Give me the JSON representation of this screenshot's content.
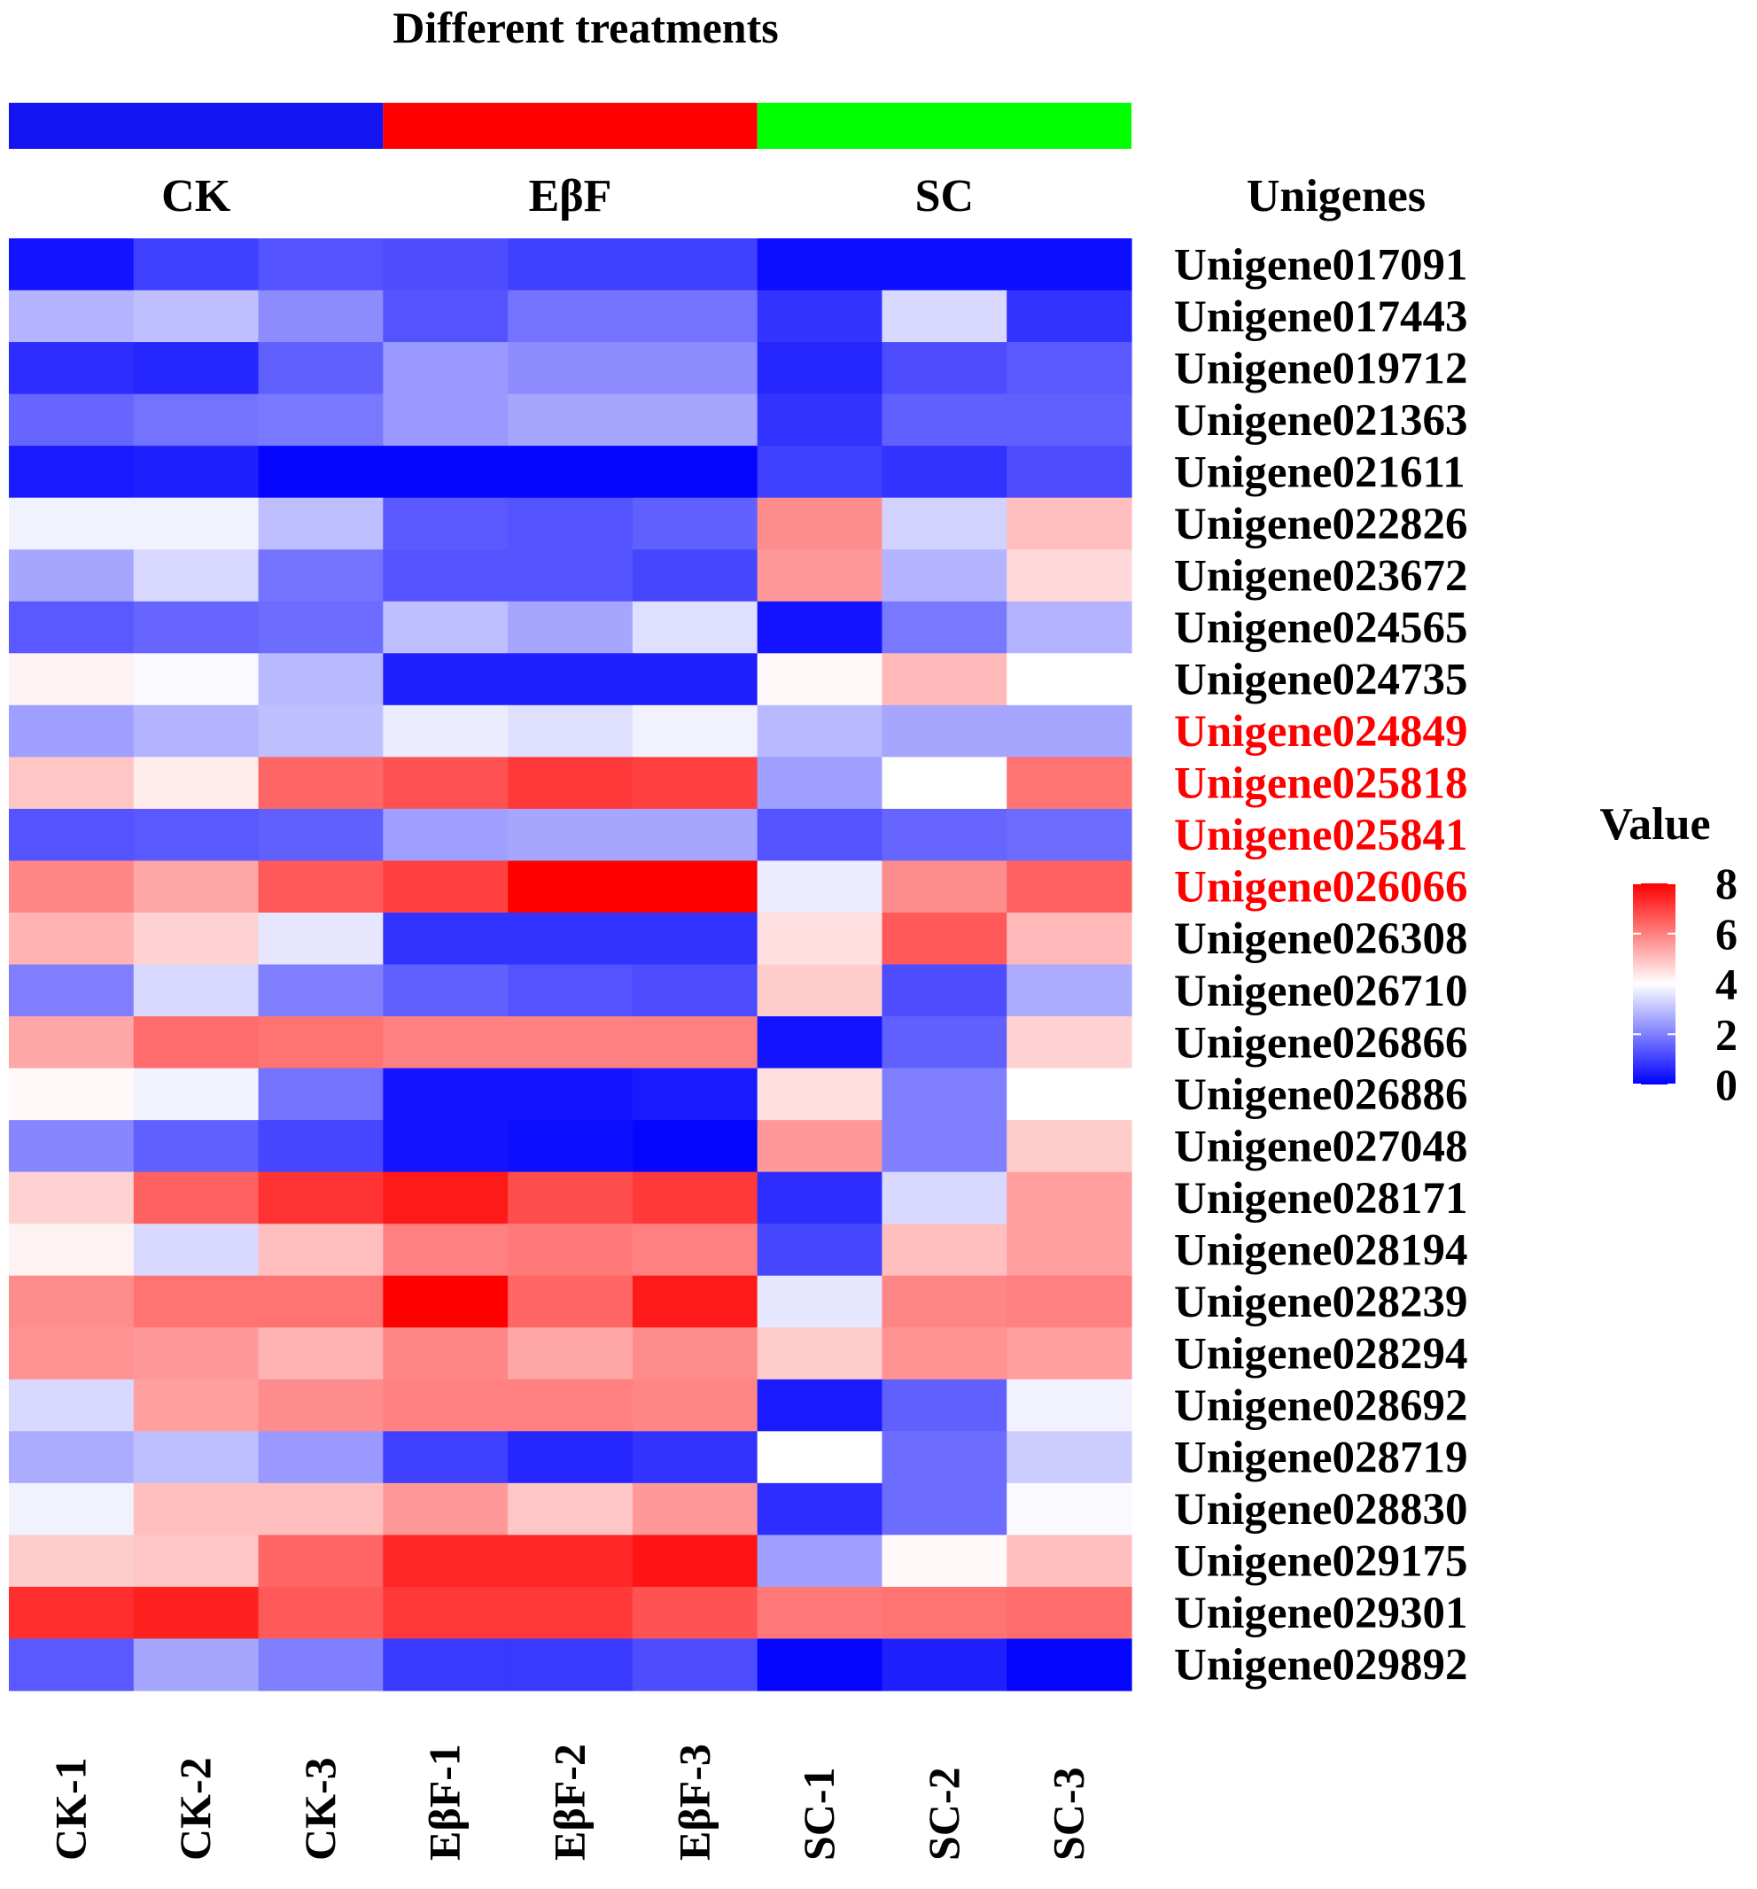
{
  "chart_data": {
    "type": "heatmap",
    "title": "Different treatments",
    "row_axis_title": "Unigenes",
    "legend_title": "Value",
    "value_range": [
      0,
      8
    ],
    "legend_ticks": [
      "8",
      "6",
      "4",
      "2",
      "0"
    ],
    "legend_tick_values": [
      8,
      6,
      4,
      2,
      0
    ],
    "groups": [
      {
        "name": "CK",
        "color": "#1414f0",
        "span": 3
      },
      {
        "name": "EβF",
        "color": "#ff0000",
        "span": 3
      },
      {
        "name": "SC",
        "color": "#00ff00",
        "span": 3
      }
    ],
    "columns": [
      "CK-1",
      "CK-2",
      "CK-3",
      "EβF-1",
      "EβF-2",
      "EβF-3",
      "SC-1",
      "SC-2",
      "SC-3"
    ],
    "rows": [
      {
        "label": "Unigene017091",
        "highlight": false,
        "values": [
          0.3,
          1.0,
          1.3,
          1.2,
          1.0,
          1.0,
          0.2,
          0.2,
          0.2
        ]
      },
      {
        "label": "Unigene017443",
        "highlight": false,
        "values": [
          2.8,
          3.0,
          2.2,
          1.3,
          1.8,
          1.8,
          0.8,
          3.4,
          0.8
        ]
      },
      {
        "label": "Unigene019712",
        "highlight": false,
        "values": [
          0.7,
          0.6,
          1.5,
          2.4,
          2.2,
          2.2,
          0.6,
          1.2,
          1.4
        ]
      },
      {
        "label": "Unigene021363",
        "highlight": false,
        "values": [
          1.6,
          1.8,
          1.9,
          2.4,
          2.6,
          2.6,
          0.8,
          1.5,
          1.5
        ]
      },
      {
        "label": "Unigene021611",
        "highlight": false,
        "values": [
          0.4,
          0.5,
          0.1,
          0.1,
          0.1,
          0.1,
          1.0,
          0.8,
          1.2
        ]
      },
      {
        "label": "Unigene022826",
        "highlight": false,
        "values": [
          3.8,
          3.8,
          3.0,
          1.4,
          1.3,
          1.5,
          5.8,
          3.3,
          5.0
        ]
      },
      {
        "label": "Unigene023672",
        "highlight": false,
        "values": [
          2.6,
          3.4,
          1.8,
          1.3,
          1.3,
          1.1,
          5.6,
          2.8,
          4.6
        ]
      },
      {
        "label": "Unigene024565",
        "highlight": false,
        "values": [
          1.4,
          1.6,
          1.7,
          3.0,
          2.6,
          3.5,
          0.3,
          1.9,
          2.8
        ]
      },
      {
        "label": "Unigene024735",
        "highlight": false,
        "values": [
          4.2,
          3.9,
          2.9,
          0.5,
          0.5,
          0.5,
          4.1,
          5.1,
          4.0
        ]
      },
      {
        "label": "Unigene024849",
        "highlight": true,
        "values": [
          2.5,
          2.8,
          3.0,
          3.7,
          3.5,
          3.8,
          2.9,
          2.6,
          2.6
        ]
      },
      {
        "label": "Unigene025818",
        "highlight": true,
        "values": [
          4.9,
          4.3,
          6.4,
          6.7,
          7.1,
          7.0,
          2.5,
          4.0,
          6.2
        ]
      },
      {
        "label": "Unigene025841",
        "highlight": true,
        "values": [
          1.3,
          1.4,
          1.5,
          2.5,
          2.6,
          2.6,
          1.3,
          1.6,
          1.7
        ]
      },
      {
        "label": "Unigene026066",
        "highlight": true,
        "values": [
          5.9,
          5.4,
          6.6,
          7.0,
          8.0,
          8.0,
          3.7,
          5.8,
          6.5
        ]
      },
      {
        "label": "Unigene026308",
        "highlight": false,
        "values": [
          5.2,
          4.7,
          3.6,
          0.8,
          0.8,
          0.8,
          4.5,
          6.6,
          5.1
        ]
      },
      {
        "label": "Unigene026710",
        "highlight": false,
        "values": [
          2.0,
          3.4,
          2.0,
          1.5,
          1.3,
          1.2,
          4.8,
          1.2,
          2.7
        ]
      },
      {
        "label": "Unigene026866",
        "highlight": false,
        "values": [
          5.4,
          6.3,
          6.2,
          6.0,
          6.0,
          6.0,
          0.3,
          1.5,
          4.7
        ]
      },
      {
        "label": "Unigene026886",
        "highlight": false,
        "values": [
          4.1,
          3.8,
          1.8,
          0.3,
          0.3,
          0.4,
          4.5,
          2.0,
          4.0
        ]
      },
      {
        "label": "Unigene027048",
        "highlight": false,
        "values": [
          2.1,
          1.5,
          1.1,
          0.3,
          0.2,
          0.1,
          5.6,
          2.0,
          4.8
        ]
      },
      {
        "label": "Unigene028171",
        "highlight": false,
        "values": [
          4.7,
          6.5,
          7.2,
          7.6,
          6.8,
          7.1,
          0.7,
          3.4,
          5.5
        ]
      },
      {
        "label": "Unigene028194",
        "highlight": false,
        "values": [
          4.2,
          3.4,
          5.0,
          6.0,
          6.1,
          6.0,
          1.1,
          5.0,
          5.5
        ]
      },
      {
        "label": "Unigene028239",
        "highlight": false,
        "values": [
          5.8,
          6.2,
          6.2,
          8.0,
          6.4,
          7.6,
          3.6,
          5.9,
          6.0
        ]
      },
      {
        "label": "Unigene028294",
        "highlight": false,
        "values": [
          5.7,
          5.6,
          5.2,
          5.9,
          5.4,
          5.8,
          4.8,
          5.7,
          5.5
        ]
      },
      {
        "label": "Unigene028692",
        "highlight": false,
        "values": [
          3.4,
          5.5,
          5.8,
          6.0,
          6.0,
          5.9,
          0.4,
          1.5,
          3.8
        ]
      },
      {
        "label": "Unigene028719",
        "highlight": false,
        "values": [
          2.7,
          3.0,
          2.4,
          1.0,
          0.6,
          0.8,
          4.0,
          1.7,
          3.2
        ]
      },
      {
        "label": "Unigene028830",
        "highlight": false,
        "values": [
          3.8,
          5.0,
          5.0,
          5.6,
          4.9,
          5.6,
          0.7,
          1.7,
          3.9
        ]
      },
      {
        "label": "Unigene029175",
        "highlight": false,
        "values": [
          4.8,
          4.9,
          6.4,
          7.4,
          7.4,
          7.7,
          2.5,
          4.1,
          5.0
        ]
      },
      {
        "label": "Unigene029301",
        "highlight": false,
        "values": [
          7.3,
          7.5,
          6.6,
          7.1,
          7.1,
          6.7,
          6.1,
          6.2,
          6.3
        ]
      },
      {
        "label": "Unigene029892",
        "highlight": false,
        "values": [
          1.4,
          2.6,
          2.0,
          0.9,
          0.9,
          1.2,
          0.1,
          0.5,
          0.1
        ]
      }
    ],
    "color_scale": {
      "low": "#0000ff",
      "mid": "#ffffff",
      "high": "#ff0000"
    },
    "highlight_color": "#ff0000",
    "text_color": "#000000"
  }
}
